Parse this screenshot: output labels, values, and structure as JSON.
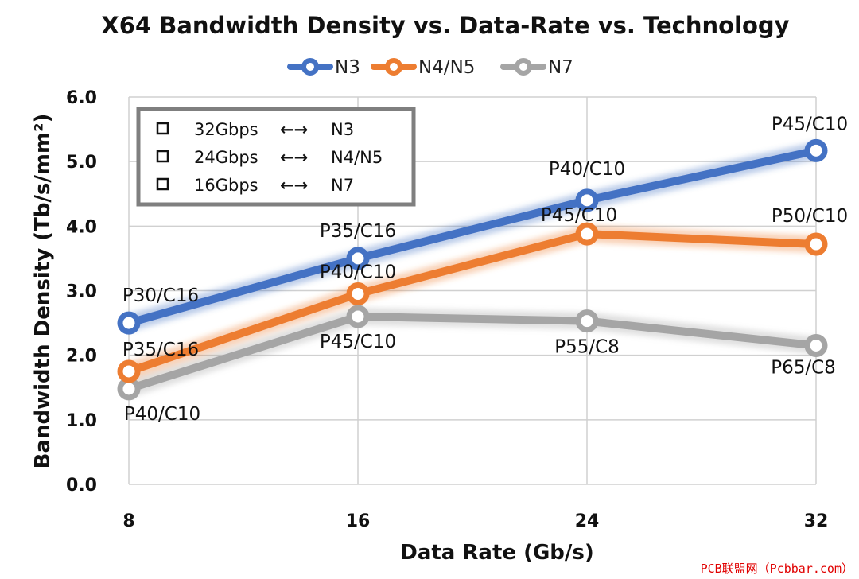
{
  "chart_data": {
    "type": "line",
    "title": "X64 Bandwidth Density vs. Data-Rate vs. Technology",
    "xlabel": "Data Rate (Gb/s)",
    "ylabel": "Bandwidth Density (Tb/s/mm²)",
    "x": [
      8,
      16,
      24,
      32
    ],
    "ylim": [
      0,
      6
    ],
    "yticks": [
      "0.0",
      "1.0",
      "2.0",
      "3.0",
      "4.0",
      "5.0",
      "6.0"
    ],
    "xticks": [
      "8",
      "16",
      "24",
      "32"
    ],
    "grid": true,
    "legend_position": "top",
    "series": [
      {
        "name": "N3",
        "color": "#4472c4",
        "values": [
          2.5,
          3.5,
          4.4,
          5.17
        ],
        "labels": [
          "P30/C16",
          "P35/C16",
          "P40/C10",
          "P45/C10"
        ]
      },
      {
        "name": "N4/N5",
        "color": "#ed7d31",
        "values": [
          1.75,
          2.95,
          3.88,
          3.72
        ],
        "labels": [
          "P35/C16",
          "P40/C10",
          "P45/C10",
          "P50/C10"
        ]
      },
      {
        "name": "N7",
        "color": "#a5a5a5",
        "values": [
          1.48,
          2.6,
          2.53,
          2.15
        ],
        "labels": [
          "P40/C10",
          "P45/C10",
          "P55/C8",
          "P65/C8"
        ]
      }
    ],
    "inset_legend": [
      {
        "rate": "32Gbps",
        "arrow": "←→",
        "tech": "N3"
      },
      {
        "rate": "24Gbps",
        "arrow": "←→",
        "tech": "N4/N5"
      },
      {
        "rate": "16Gbps",
        "arrow": "←→",
        "tech": "N7"
      }
    ]
  },
  "watermark": "PCB联盟网（Pcbbar.com）"
}
